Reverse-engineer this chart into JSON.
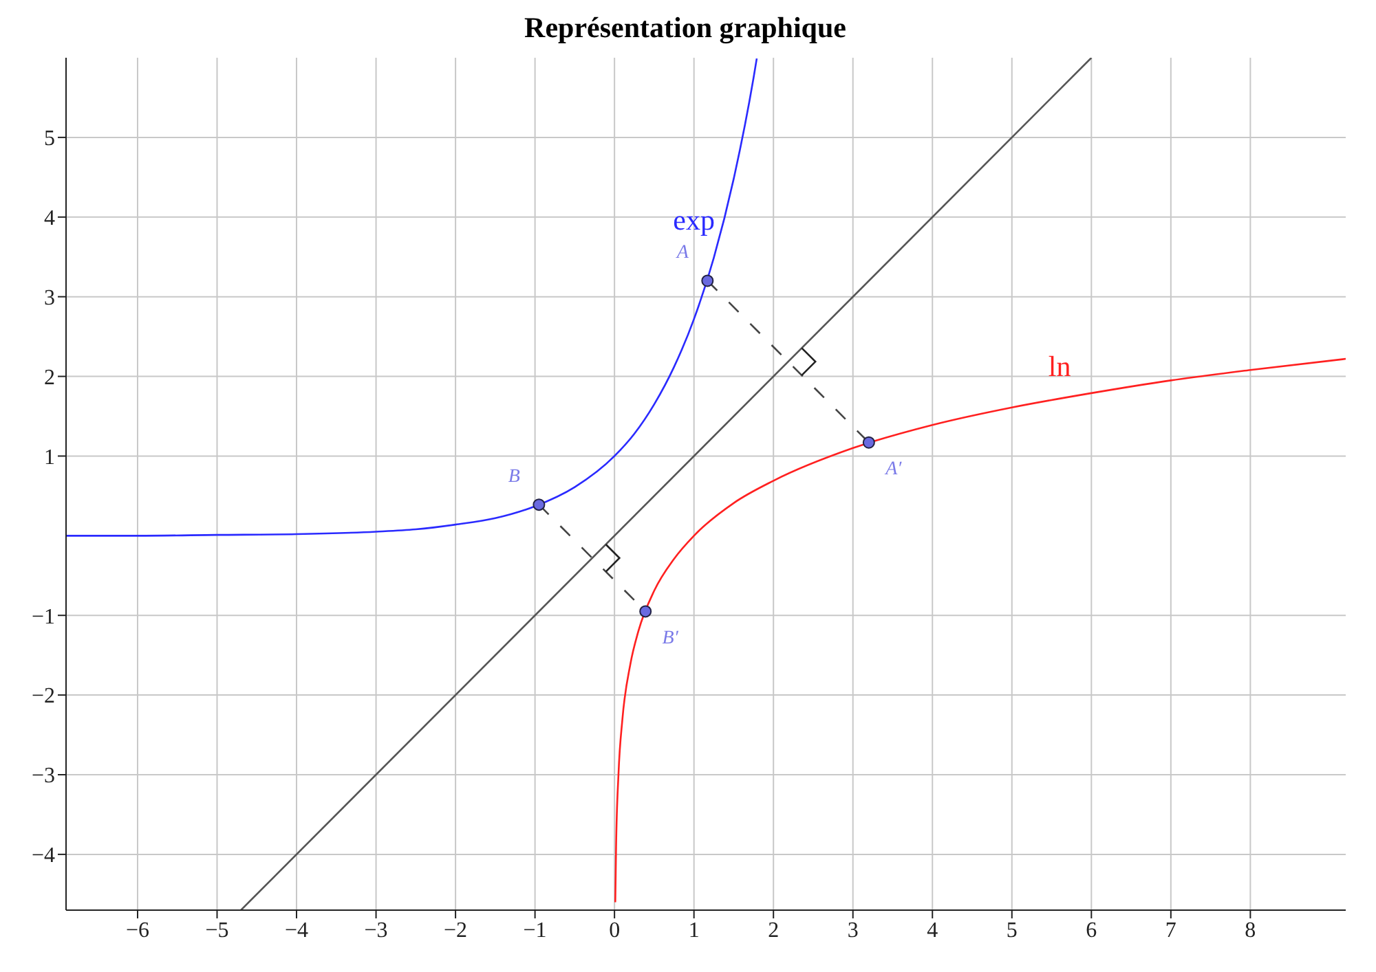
{
  "chart_data": {
    "type": "line",
    "title": "Représentation graphique",
    "xlim": [
      -6.9,
      9.2
    ],
    "ylim": [
      -4.7,
      6
    ],
    "xticks": [
      -6,
      -5,
      -4,
      -3,
      -2,
      -1,
      0,
      1,
      2,
      3,
      4,
      5,
      6,
      7,
      8
    ],
    "yticks": [
      -4,
      -3,
      -2,
      -1,
      1,
      2,
      3,
      4,
      5
    ],
    "grid": true,
    "legend": false,
    "series": [
      {
        "name": "exp",
        "color": "#2a2aff",
        "x": [
          -6.9,
          -6,
          -5,
          -4,
          -3,
          -2.5,
          -2,
          -1.5,
          -1,
          -0.5,
          0,
          0.25,
          0.5,
          0.75,
          1,
          1.25,
          1.5,
          1.75,
          1.79
        ],
        "values": [
          0,
          0,
          0.01,
          0.02,
          0.05,
          0.08,
          0.14,
          0.22,
          0.37,
          0.61,
          1,
          1.28,
          1.65,
          2.12,
          2.72,
          3.49,
          4.48,
          5.75,
          5.99
        ]
      },
      {
        "name": "ln",
        "color": "#ff2020",
        "x": [
          0.01,
          0.02,
          0.05,
          0.1,
          0.2,
          0.3,
          0.5,
          0.75,
          1,
          1.5,
          2,
          3,
          4,
          5,
          6,
          7,
          8,
          9.2
        ],
        "values": [
          -4.6,
          -3.91,
          -3,
          -2.3,
          -1.61,
          -1.2,
          -0.69,
          -0.29,
          0,
          0.41,
          0.69,
          1.1,
          1.39,
          1.61,
          1.79,
          1.95,
          2.08,
          2.22
        ]
      },
      {
        "color": "#555555",
        "x": [
          -4.7,
          6
        ],
        "values": [
          -4.7,
          6
        ]
      },
      {
        "color": "#444444",
        "line_style": "dashed",
        "x": [
          1.17,
          3.2
        ],
        "values": [
          3.2,
          1.17
        ]
      },
      {
        "color": "#444444",
        "line_style": "dashed",
        "x": [
          -0.95,
          0.39
        ],
        "values": [
          0.39,
          -0.95
        ]
      },
      {
        "type": "scatter",
        "color": "#6a6ae0",
        "marker": "circle",
        "x": [
          1.17,
          3.2,
          -0.95,
          0.39
        ],
        "values": [
          3.2,
          1.17,
          0.39,
          -0.95
        ]
      }
    ],
    "annotations": [
      {
        "text": "A",
        "x": 1.17,
        "y": 3.2
      },
      {
        "text": "A′",
        "x": 3.2,
        "y": 1.17
      },
      {
        "text": "B",
        "x": -0.95,
        "y": 0.39
      },
      {
        "text": "B′",
        "x": 0.39,
        "y": -0.95
      }
    ]
  }
}
